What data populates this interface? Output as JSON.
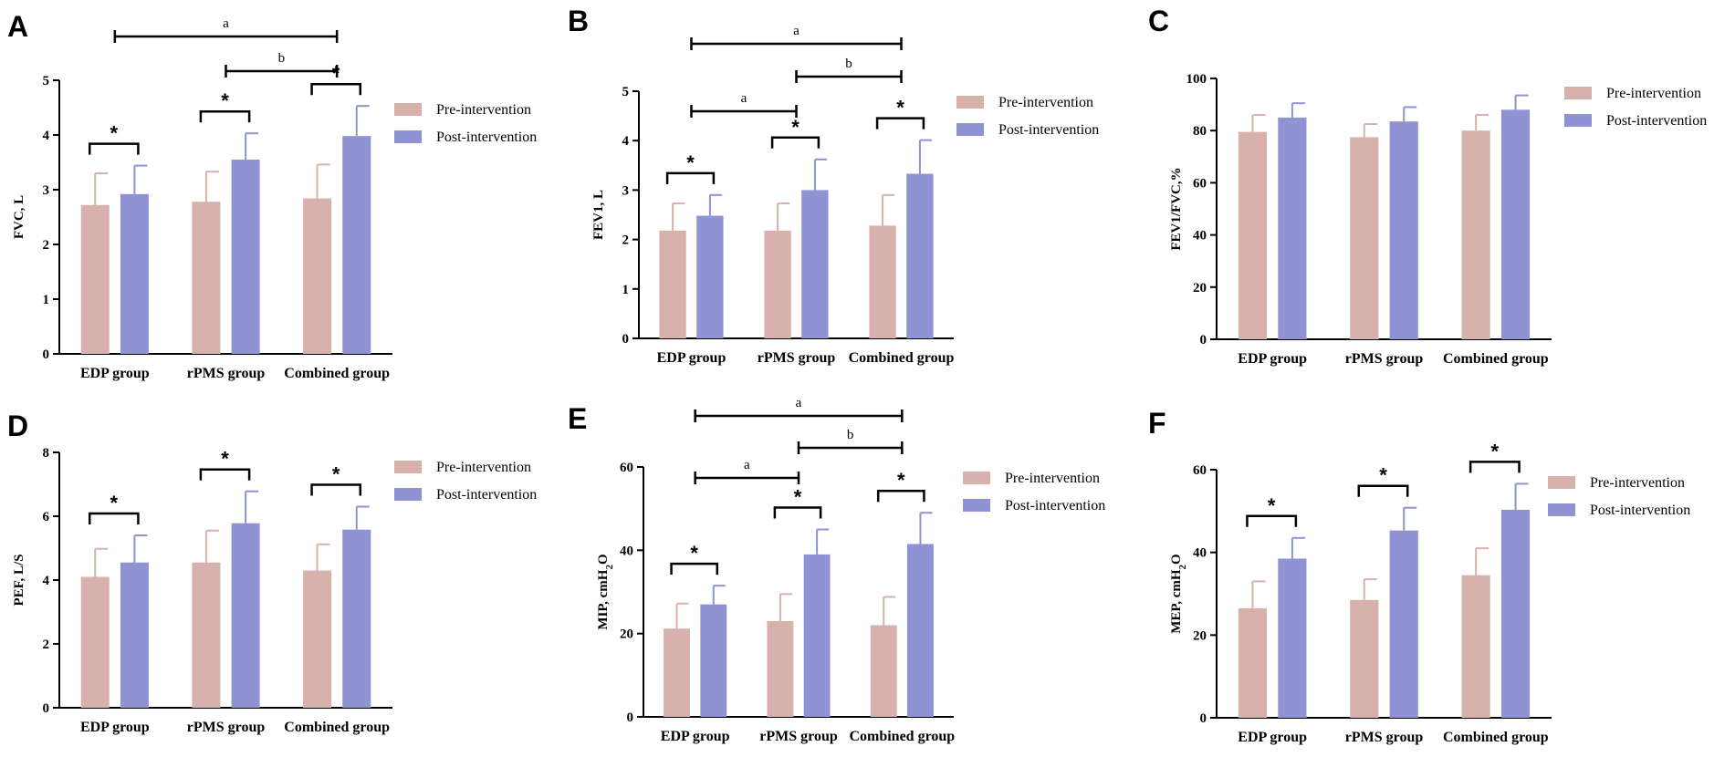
{
  "colors": {
    "pre": "#d8b1ad",
    "post": "#8f93d3",
    "axis": "#000000"
  },
  "chart_data": [
    {
      "panel": "A",
      "type": "bar",
      "title": "",
      "xlabel": "",
      "ylabel": "FVC, L",
      "ylim": [
        0,
        5
      ],
      "yticks": [
        "0",
        "1",
        "2",
        "3",
        "4",
        "5"
      ],
      "categories": [
        "EDP group",
        "rPMS group",
        "Combined group"
      ],
      "series": [
        {
          "name": "Pre-intervention",
          "values": [
            2.72,
            2.78,
            2.84
          ],
          "errors": [
            0.58,
            0.55,
            0.62
          ]
        },
        {
          "name": "Post-intervention",
          "values": [
            2.92,
            3.55,
            3.98
          ],
          "errors": [
            0.52,
            0.48,
            0.55
          ]
        }
      ],
      "within_group": [
        "*",
        "*",
        "*"
      ],
      "between_group": [
        {
          "label": "a",
          "from": 0,
          "to": 2
        },
        {
          "label": "b",
          "from": 1,
          "to": 2
        }
      ],
      "legend": "top-right"
    },
    {
      "panel": "B",
      "type": "bar",
      "title": "",
      "xlabel": "",
      "ylabel": "FEV1, L",
      "ylim": [
        0,
        5
      ],
      "yticks": [
        "0",
        "1",
        "2",
        "3",
        "4",
        "5"
      ],
      "categories": [
        "EDP group",
        "rPMS group",
        "Combined group"
      ],
      "series": [
        {
          "name": "Pre-intervention",
          "values": [
            2.18,
            2.18,
            2.28
          ],
          "errors": [
            0.55,
            0.55,
            0.62
          ]
        },
        {
          "name": "Post-intervention",
          "values": [
            2.48,
            3.0,
            3.33
          ],
          "errors": [
            0.42,
            0.62,
            0.68
          ]
        }
      ],
      "within_group": [
        "*",
        "*",
        "*"
      ],
      "between_group": [
        {
          "label": "a",
          "from": 0,
          "to": 2
        },
        {
          "label": "b",
          "from": 1,
          "to": 2
        },
        {
          "label": "a",
          "from": 0,
          "to": 1
        }
      ],
      "legend": "top-right"
    },
    {
      "panel": "C",
      "type": "bar",
      "title": "",
      "xlabel": "",
      "ylabel": "FEV1/FVC,%",
      "ylim": [
        0,
        100
      ],
      "yticks": [
        "0",
        "20",
        "40",
        "60",
        "80",
        "100"
      ],
      "categories": [
        "EDP group",
        "rPMS group",
        "Combined group"
      ],
      "series": [
        {
          "name": "Pre-intervention",
          "values": [
            79.5,
            77.5,
            80.0
          ],
          "errors": [
            6.5,
            5.0,
            6.0
          ]
        },
        {
          "name": "Post-intervention",
          "values": [
            85.0,
            83.5,
            88.0
          ],
          "errors": [
            5.5,
            5.5,
            5.5
          ]
        }
      ],
      "within_group": [],
      "between_group": [],
      "legend": "top-right"
    },
    {
      "panel": "D",
      "type": "bar",
      "title": "",
      "xlabel": "",
      "ylabel": "PEF, L/S",
      "ylim": [
        0,
        8
      ],
      "yticks": [
        "0",
        "2",
        "4",
        "6",
        "8"
      ],
      "categories": [
        "EDP group",
        "rPMS group",
        "Combined group"
      ],
      "series": [
        {
          "name": "Pre-intervention",
          "values": [
            4.1,
            4.55,
            4.3
          ],
          "errors": [
            0.88,
            1.0,
            0.82
          ]
        },
        {
          "name": "Post-intervention",
          "values": [
            4.55,
            5.78,
            5.58
          ],
          "errors": [
            0.85,
            1.0,
            0.72
          ]
        }
      ],
      "within_group": [
        "*",
        "*",
        "*"
      ],
      "between_group": [],
      "legend": "top-right"
    },
    {
      "panel": "E",
      "type": "bar",
      "title": "",
      "xlabel": "",
      "ylabel_main": "MIP, cmH",
      "ylabel_sub": "2",
      "ylabel_tail": "O",
      "ylim": [
        0,
        60
      ],
      "yticks": [
        "0",
        "20",
        "40",
        "60"
      ],
      "categories": [
        "EDP group",
        "rPMS group",
        "Combined group"
      ],
      "series": [
        {
          "name": "Pre-intervention",
          "values": [
            21.2,
            23.0,
            22.0
          ],
          "errors": [
            6.0,
            6.5,
            6.8
          ]
        },
        {
          "name": "Post-intervention",
          "values": [
            27.0,
            39.0,
            41.5
          ],
          "errors": [
            4.5,
            6.0,
            7.5
          ]
        }
      ],
      "within_group": [
        "*",
        "*",
        "*"
      ],
      "between_group": [
        {
          "label": "a",
          "from": 0,
          "to": 2
        },
        {
          "label": "b",
          "from": 1,
          "to": 2
        },
        {
          "label": "a",
          "from": 0,
          "to": 1
        }
      ],
      "legend": "top-right"
    },
    {
      "panel": "F",
      "type": "bar",
      "title": "",
      "xlabel": "",
      "ylabel_main": "MEP, cmH",
      "ylabel_sub": "2",
      "ylabel_tail": "O",
      "ylim": [
        0,
        60
      ],
      "yticks": [
        "0",
        "20",
        "40",
        "60"
      ],
      "categories": [
        "EDP group",
        "rPMS group",
        "Combined group"
      ],
      "series": [
        {
          "name": "Pre-intervention",
          "values": [
            26.5,
            28.5,
            34.5
          ],
          "errors": [
            6.5,
            5.0,
            6.5
          ]
        },
        {
          "name": "Post-intervention",
          "values": [
            38.5,
            45.3,
            50.3
          ],
          "errors": [
            5.0,
            5.5,
            6.3
          ]
        }
      ],
      "within_group": [
        "*",
        "*",
        "*"
      ],
      "between_group": [],
      "legend": "top-right"
    }
  ]
}
